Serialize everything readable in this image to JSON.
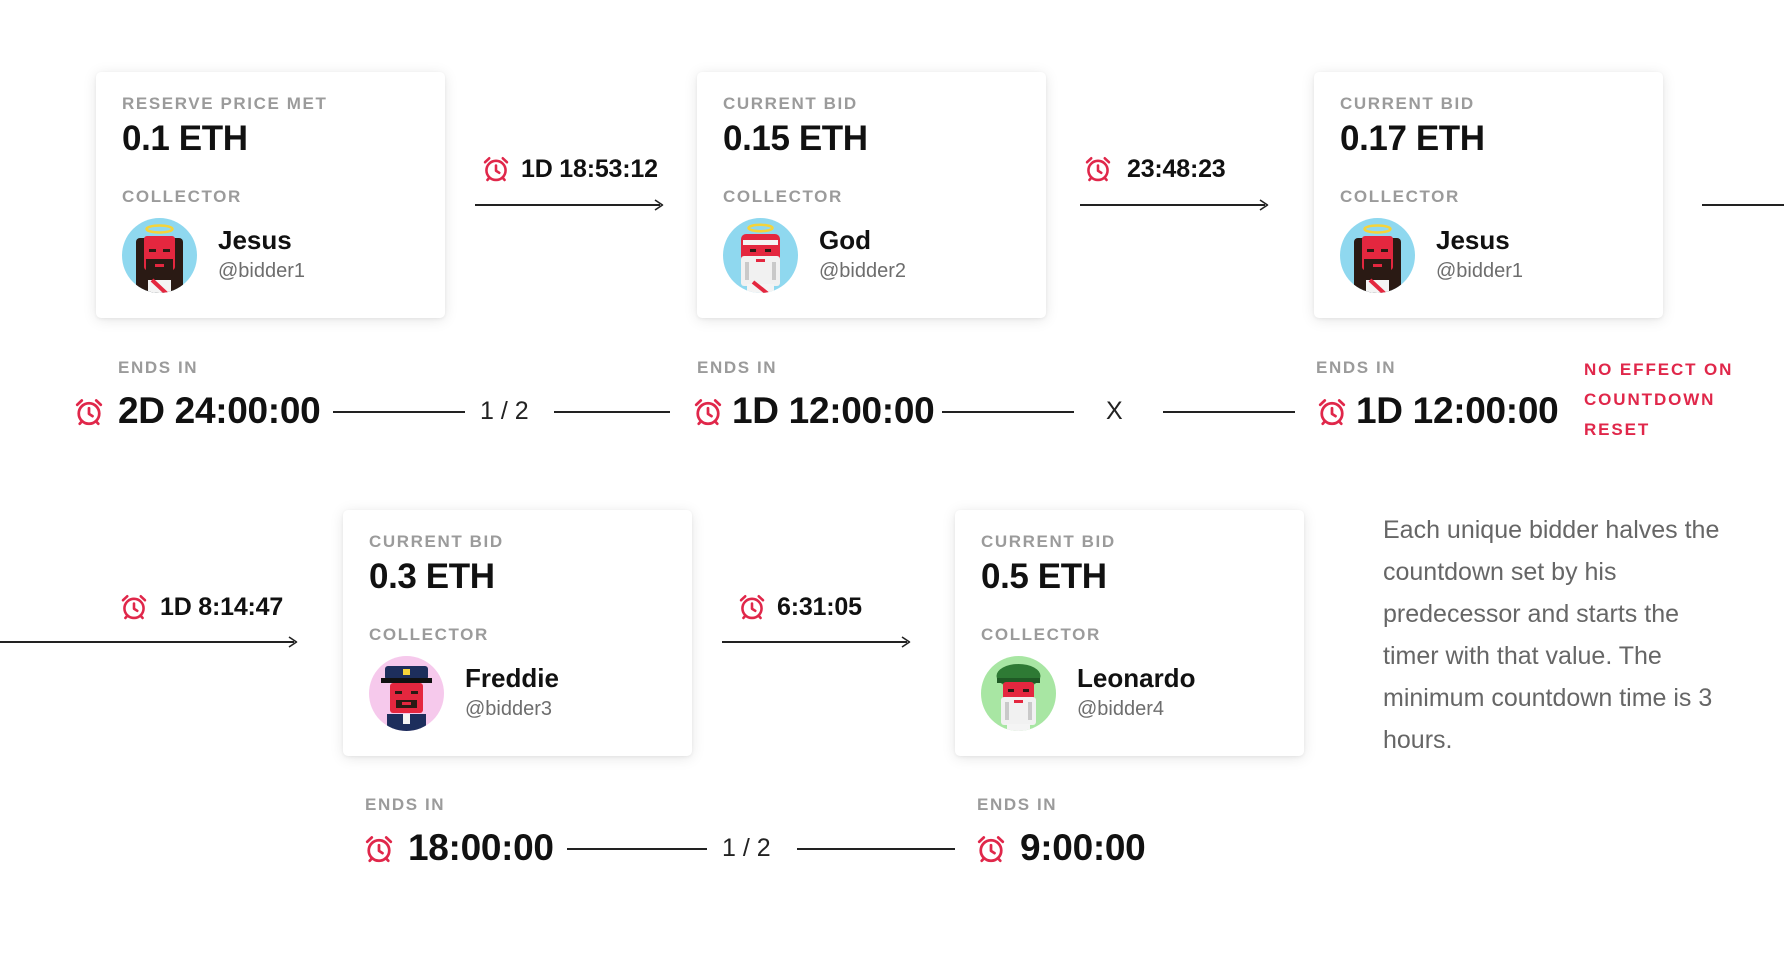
{
  "cards": [
    {
      "status_label": "RESERVE PRICE MET",
      "price": "0.1 ETH",
      "collector_label": "COLLECTOR",
      "name": "Jesus",
      "handle": "@bidder1",
      "avatar": "jesus-avatar"
    },
    {
      "status_label": "CURRENT BID",
      "price": "0.15 ETH",
      "collector_label": "COLLECTOR",
      "name": "God",
      "handle": "@bidder2",
      "avatar": "god-avatar"
    },
    {
      "status_label": "CURRENT BID",
      "price": "0.17 ETH",
      "collector_label": "COLLECTOR",
      "name": "Jesus",
      "handle": "@bidder1",
      "avatar": "jesus-avatar"
    },
    {
      "status_label": "CURRENT BID",
      "price": "0.3 ETH",
      "collector_label": "COLLECTOR",
      "name": "Freddie",
      "handle": "@bidder3",
      "avatar": "freddie-avatar"
    },
    {
      "status_label": "CURRENT BID",
      "price": "0.5 ETH",
      "collector_label": "COLLECTOR",
      "name": "Leonardo",
      "handle": "@bidder4",
      "avatar": "leonardo-avatar"
    }
  ],
  "transitions": [
    "1D 18:53:12",
    "23:48:23",
    "1D 8:14:47",
    "6:31:05"
  ],
  "ends": [
    {
      "label": "ENDS IN",
      "time": "2D 24:00:00"
    },
    {
      "label": "ENDS IN",
      "time": "1D 12:00:00"
    },
    {
      "label": "ENDS IN",
      "time": "1D 12:00:00"
    },
    {
      "label": "ENDS IN",
      "time": "18:00:00"
    },
    {
      "label": "ENDS IN",
      "time": "9:00:00"
    }
  ],
  "operators": [
    "1 / 2",
    "X",
    "1 / 2"
  ],
  "note": [
    "NO EFFECT ON",
    "COUNTDOWN",
    "RESET"
  ],
  "description": "Each unique bidder halves the countdown set by his predecessor and starts the timer with that value. The minimum countdown time is 3 hours.",
  "colors": {
    "accent": "#e0274a",
    "label_gray": "#9b9b9b",
    "text": "#111111"
  }
}
